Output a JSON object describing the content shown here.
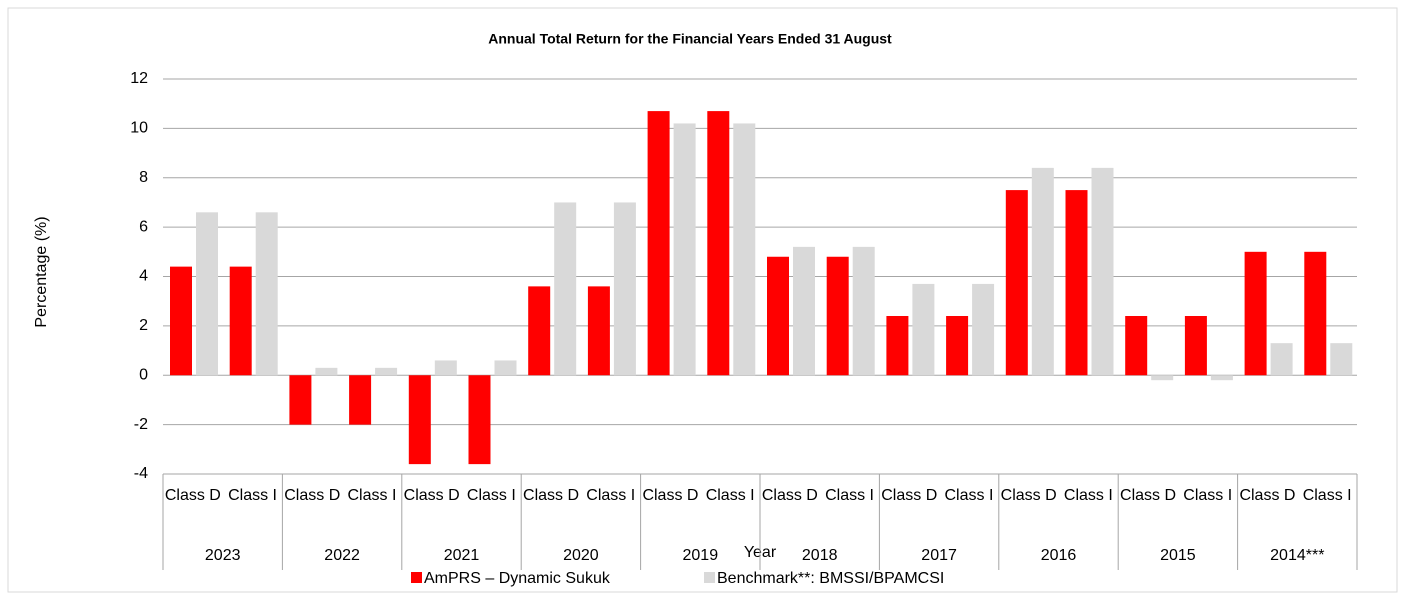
{
  "chart_data": {
    "type": "bar",
    "title": "Annual Total Return for the Financial Years Ended 31 August",
    "x_label": "Year",
    "y_label": "Percentage (%)",
    "groups": [
      "2023",
      "2022",
      "2021",
      "2020",
      "2019",
      "2018",
      "2017",
      "2016",
      "2015",
      "2014***"
    ],
    "categories": [
      "Class D",
      "Class I",
      "Class D",
      "Class I",
      "Class D",
      "Class I",
      "Class D",
      "Class I",
      "Class D",
      "Class I",
      "Class D",
      "Class I",
      "Class D",
      "Class I",
      "Class D",
      "Class I",
      "Class D",
      "Class I",
      "Class D",
      "Class I"
    ],
    "series": [
      {
        "name": "AmPRS – Dynamic Sukuk",
        "color": "#ff0000",
        "values": [
          4.4,
          4.4,
          -2.0,
          -2.0,
          -3.6,
          -3.6,
          3.6,
          3.6,
          10.7,
          10.7,
          4.8,
          4.8,
          2.4,
          2.4,
          7.5,
          7.5,
          2.4,
          2.4,
          5.0,
          5.0
        ]
      },
      {
        "name": "Benchmark**: BMSSI/BPAMCSI",
        "color": "#d9d9d9",
        "values": [
          6.6,
          6.6,
          0.3,
          0.3,
          0.6,
          0.6,
          7.0,
          7.0,
          10.2,
          10.2,
          5.2,
          5.2,
          3.7,
          3.7,
          8.4,
          8.4,
          -0.2,
          -0.2,
          1.3,
          1.3
        ]
      }
    ],
    "ylim": [
      -4,
      12
    ],
    "yticks": [
      -4,
      -2,
      0,
      2,
      4,
      6,
      8,
      10,
      12
    ],
    "grid": true,
    "legend": "bottom"
  }
}
